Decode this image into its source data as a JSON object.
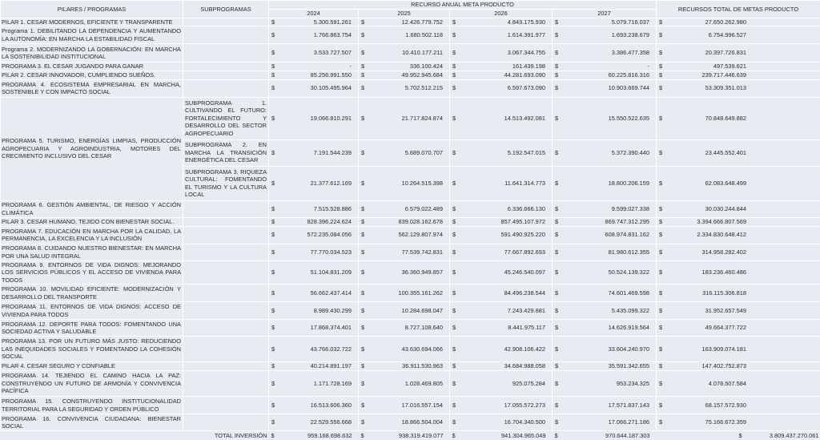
{
  "header": {
    "col_pilares": "PILARES / PROGRAMAS",
    "col_subprogramas": "SUBPROGRAMAS",
    "col_recurso_anual": "RECURSO ANUAL META PRODUCTO",
    "col_total": "RECURSOS TOTAL DE METAS PRODUCTO",
    "years": [
      "2024",
      "2025",
      "2026",
      "2027"
    ]
  },
  "currency_symbol": "$",
  "rows": [
    {
      "name": "PILAR 1.  CESAR MODERNOS, EFICIENTE Y TRANSPARENTE",
      "sub": "",
      "values": [
        "5.300.591.261",
        "12.426.779.752",
        "4.843.175.930",
        "5.079.716.037",
        "27.650.262.980"
      ]
    },
    {
      "name": "Programa 1. DEBILITANDO LA DEPENDENCIA Y AUMENTANDO LA AUTONOMÍA: EN MARCHA LA ESTABILIDAD FISCAL",
      "sub": "",
      "values": [
        "1.766.863.754",
        "1.680.502.118",
        "1.614.391.977",
        "1.693.238.679",
        "6.754.996.527"
      ]
    },
    {
      "name": "Programa 2. MODERNIZANDO LA GOBERNACIÓN: EN MARCHA LA SOSTENIBILIDAD INSTITUCIONAL",
      "sub": "",
      "values": [
        "3.533.727.507",
        "10.410.177.211",
        "3.067.344.755",
        "3.386.477.358",
        "20.397.726.831"
      ]
    },
    {
      "name": "PROGRAMA 3. EL CESAR JUGANDO PARA GANAR",
      "sub": "",
      "values": [
        "-",
        "336.100.424",
        "161.439.198",
        "-",
        "497.539.621"
      ]
    },
    {
      "name": "PILAR 2.  CESAR INNOVADOR, CUMPLIENDO SUEÑOS.",
      "sub": "",
      "values": [
        "85.256.991.550",
        "49.952.945.684",
        "44.281.693.090",
        "60.225.816.316",
        "239.717.446.639"
      ]
    },
    {
      "name": "PROGRAMA 4. ECOSISTEMA EMPRESARIAL EN MARCHA, SOSTENIBLE Y CON IMPACTO SOCIAL",
      "sub": "",
      "values": [
        "30.105.495.964",
        "5.702.512.215",
        "6.597.673.090",
        "10.903.669.744",
        "53.309.351.013"
      ]
    },
    {
      "name": "PROGRAMA 5. TURISMO, ENERGÍAS LIMPIAS, PRODUCCIÓN AGROPECUARIA Y AGROINDUSTRIA, MOTORES DEL CRECIMIENTO INCLUSIVO DEL CESAR",
      "span": 3,
      "sub": "SUBPROGRAMA 1. CULTIVANDO EL FUTURO: FORTALECIMIENTO Y DESARROLLO DEL SECTOR AGROPECUARIO",
      "values": [
        "19.066.810.291",
        "21.717.824.874",
        "14.513.492.081",
        "15.550.522.635",
        "70.848.649.882"
      ]
    },
    {
      "skip_name": true,
      "sub": "SUBPROGRAMA 2. EN MARCHA LA TRANSICIÓN ENERGÉTICA DEL CESAR",
      "values": [
        "7.191.544.239",
        "5.689.070.707",
        "5.192.547.015",
        "5.372.390.440",
        "23.445.552.401"
      ]
    },
    {
      "skip_name": true,
      "sub": "SUBPROGRAMA 3. RIQUEZA CULTURAL: FOMENTANDO EL TURISMO Y LA CULTURA LOCAL",
      "values": [
        "21.377.612.169",
        "10.264.515.398",
        "11.641.314.773",
        "18.800.206.159",
        "62.083.648.499"
      ]
    },
    {
      "name": "PROGRAMA 6. GESTIÓN AMBIENTAL, DE RIESGO Y ACCIÓN CLIMÁTICA",
      "sub": "",
      "values": [
        "7.515.528.886",
        "6.579.022.489",
        "6.336.666.130",
        "9.599.027.338",
        "30.030.244.844"
      ]
    },
    {
      "name": "PILAR 3.  CESAR HUMANO, TEJIDO CON BIENESTAR SOCIAL.",
      "sub": "",
      "values": [
        "828.396.224.624",
        "839.028.162.678",
        "857.495.107.972",
        "869.747.312.295",
        "3.394.666.807.569"
      ]
    },
    {
      "name": "PROGRAMA 7. EDUCACIÓN EN MARCHA POR LA CALIDAD, LA PERMANENCIA, LA EXCELENCIA Y LA INCLUSIÓN",
      "sub": "",
      "values": [
        "572.235.084.056",
        "562.129.807.974",
        "591.490.925.220",
        "608.974.831.162",
        "2.334.830.648.412"
      ]
    },
    {
      "name": "PROGRAMA 8. CUIDANDO NUESTRO BIENESTAR: EN MARCHA POR UNA SALUD INTEGRAL",
      "sub": "",
      "values": [
        "77.770.034.523",
        "77.539.742.831",
        "77.667.892.693",
        "81.980.612.355",
        "314.958.282.402"
      ]
    },
    {
      "name": "PROGRAMA 9. ENTORNOS DE VIDA DIGNOS: MEJORANDO LOS SERVICIOS PÚBLICOS Y EL ACCESO DE VIVIENDA PARA TODOS",
      "sub": "",
      "values": [
        "51.104.831.209",
        "36.360.949.857",
        "45.246.540.097",
        "50.524.139.322",
        "183.236.460.486"
      ]
    },
    {
      "name": "PROGRAMA 10. MOVILIDAD EFICIENTE: MODERNIZACIÓN Y DESARROLLO DEL TRANSPORTE",
      "sub": "",
      "values": [
        "56.662.437.414",
        "100.355.161.262",
        "84.496.238.544",
        "74.601.469.598",
        "316.115.306.818"
      ]
    },
    {
      "name": "PROGRAMA 11. ENTORNOS DE VIDA DIGNOS: ACCESO DE VIVIENDA PARA TODOS",
      "sub": "",
      "values": [
        "8.989.430.299",
        "10.284.698.047",
        "7.243.429.881",
        "5.435.099.322",
        "31.952.657.549"
      ]
    },
    {
      "name": "PROGRAMA 12. DEPORTE PARA TODOS: FOMENTANDO UNA SOCIEDAD ACTIVA Y SALUDABLE",
      "sub": "",
      "values": [
        "17.868.374.401",
        "8.727.108.640",
        "8.441.975.117",
        "14.626.919.564",
        "49.664.377.722"
      ]
    },
    {
      "name": "PROGRAMA 13. POR UN FUTURO MÁS JUSTO: REDUCIENDO LAS INEQUIDADES SOCIALES Y FOMENTANDO LA COHESIÓN SOCIAL",
      "sub": "",
      "values": [
        "43.766.032.722",
        "43.630.694.066",
        "42.908.106.422",
        "33.604.240.970",
        "163.909.074.181"
      ]
    },
    {
      "name": "PILAR 4.  CESAR SEGURO Y CONFIABLE",
      "sub": "",
      "values": [
        "40.214.891.197",
        "36.911.530.963",
        "34.684.988.058",
        "35.591.342.655",
        "147.402.752.873"
      ]
    },
    {
      "name": "PROGRAMA 14. TEJIENDO EL CAMINO HACIA LA PAZ: CONSTRUYENDO UN FUTURO DE ARMONÍA Y CONVIVENCIA PACÍFICA",
      "sub": "",
      "values": [
        "1.171.728.169",
        "1.028.469.805",
        "925.075.284",
        "953.234.325",
        "4.078.507.584"
      ]
    },
    {
      "name": "PROGRAMA 15. CONSTRUYENDO INSTITUCIONALIDAD TERRITORIAL PARA LA SEGURIDAD Y ORDEN PÚBLICO",
      "sub": "",
      "values": [
        "16.513.606.360",
        "17.016.557.154",
        "17.055.572.273",
        "17.571.837.143",
        "68.157.572.930"
      ]
    },
    {
      "name": "PROGRAMA 16. CONVIVENCIA CIUDADANA: BIENESTAR SOCIAL",
      "sub": "",
      "values": [
        "22.529.556.668",
        "18.866.504.004",
        "16.704.340.500",
        "17.066.271.186",
        "75.166.672.359"
      ]
    }
  ],
  "total": {
    "label": "TOTAL INVERSIÓN",
    "values": [
      "959.168.698.632",
      "938.319.419.077",
      "941.304.965.049",
      "970.644.187.303",
      "3.809.437.270.061"
    ]
  }
}
